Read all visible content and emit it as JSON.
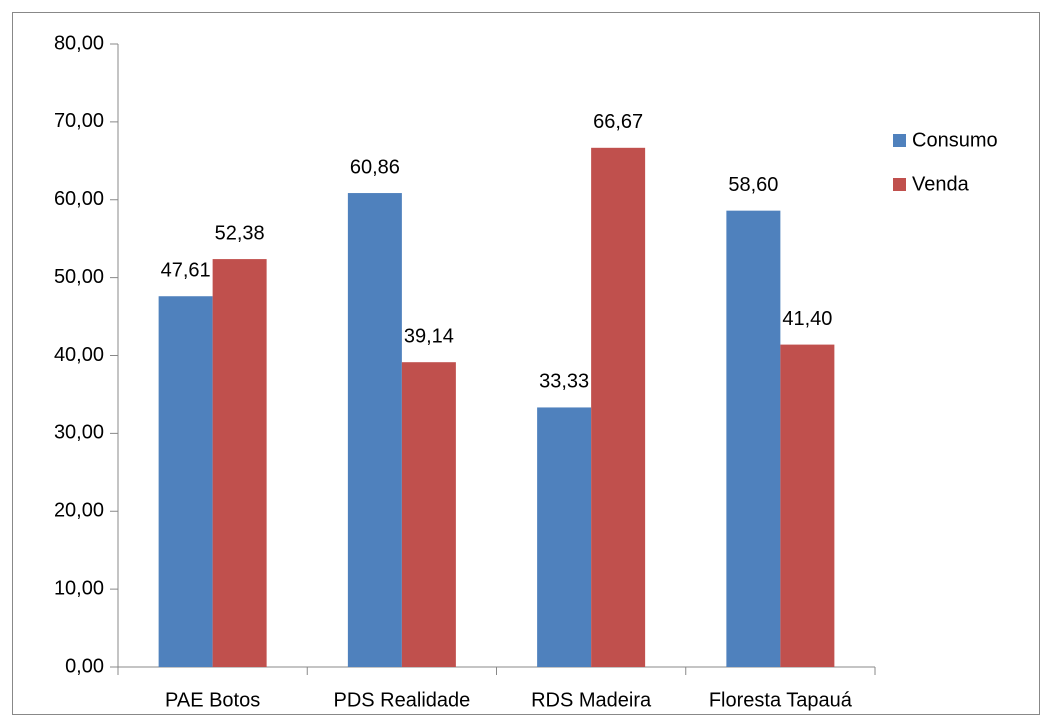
{
  "chart_data": {
    "type": "bar",
    "categories": [
      "PAE Botos",
      "PDS Realidade",
      "RDS Madeira",
      "Floresta Tapauá"
    ],
    "series": [
      {
        "name": "Consumo",
        "color": "#4f81bd",
        "values": [
          47.61,
          60.86,
          33.33,
          58.6
        ],
        "value_labels": [
          "47,61",
          "60,86",
          "33,33",
          "58,60"
        ]
      },
      {
        "name": "Venda",
        "color": "#c0504d",
        "values": [
          52.38,
          39.14,
          66.67,
          41.4
        ],
        "value_labels": [
          "52,38",
          "39,14",
          "66,67",
          "41,40"
        ]
      }
    ],
    "ylim": [
      0,
      80
    ],
    "yticks": [
      {
        "value": 0,
        "label": "0,00"
      },
      {
        "value": 10,
        "label": "10,00"
      },
      {
        "value": 20,
        "label": "20,00"
      },
      {
        "value": 30,
        "label": "30,00"
      },
      {
        "value": 40,
        "label": "40,00"
      },
      {
        "value": 50,
        "label": "50,00"
      },
      {
        "value": 60,
        "label": "60,00"
      },
      {
        "value": 70,
        "label": "70,00"
      },
      {
        "value": 80,
        "label": "80,00"
      }
    ],
    "grid": false,
    "legend": "right"
  }
}
